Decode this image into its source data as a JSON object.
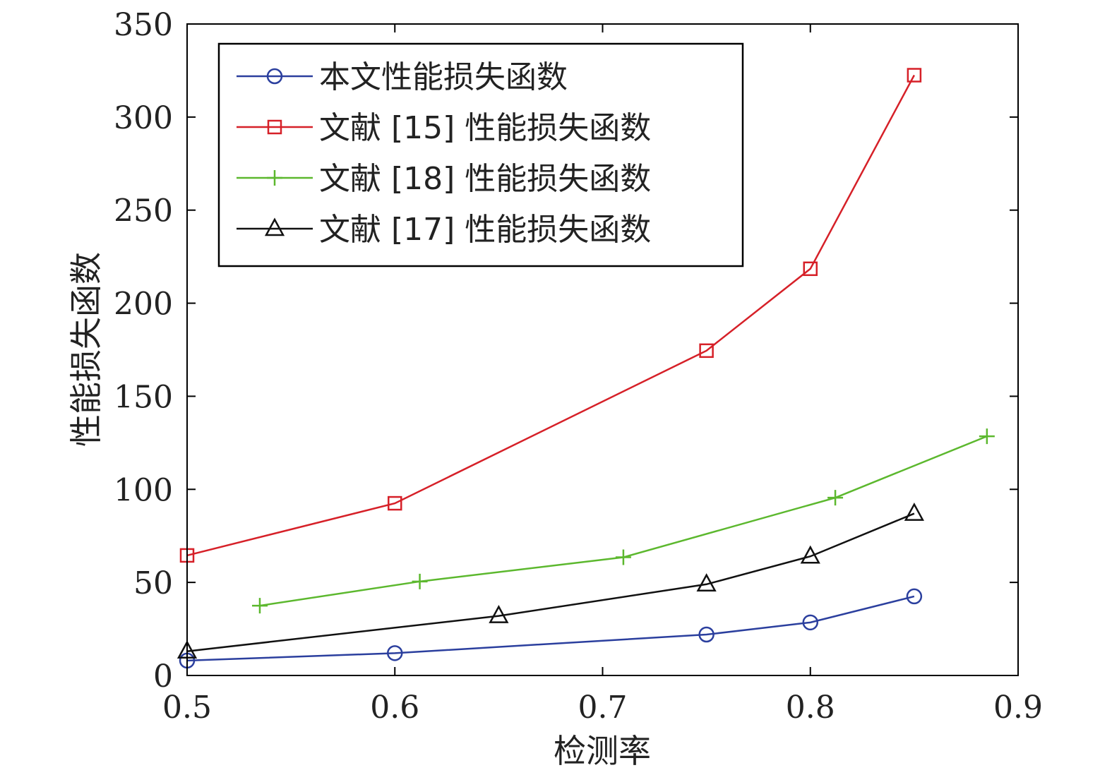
{
  "chart_data": {
    "type": "line",
    "title": "",
    "xlabel": "检测率",
    "ylabel": "性能损失函数",
    "xlim": [
      0.5,
      0.9
    ],
    "ylim": [
      0,
      350
    ],
    "xticks": [
      "0.5",
      "0.6",
      "0.7",
      "0.8",
      "0.9"
    ],
    "yticks": [
      "0",
      "50",
      "100",
      "150",
      "200",
      "250",
      "300",
      "350"
    ],
    "grid": false,
    "legend_position": "top-left",
    "series": [
      {
        "name": "本文性能损失函数",
        "color": "#2b3f9e",
        "marker": "circle",
        "x": [
          0.5,
          0.6,
          0.75,
          0.8,
          0.85
        ],
        "y": [
          8,
          12,
          22,
          28.5,
          42.5
        ]
      },
      {
        "name": "文献 [15] 性能损失函数",
        "color": "#d62028",
        "marker": "square",
        "x": [
          0.5,
          0.6,
          0.75,
          0.8,
          0.85
        ],
        "y": [
          64.5,
          92.5,
          174.5,
          218.5,
          322.5
        ]
      },
      {
        "name": "文献 [18] 性能损失函数",
        "color": "#5cb82e",
        "marker": "plus",
        "x": [
          0.535,
          0.612,
          0.71,
          0.812,
          0.885
        ],
        "y": [
          37.5,
          50.5,
          63.5,
          95.5,
          128.5
        ]
      },
      {
        "name": "文献 [17] 性能损失函数",
        "color": "#111111",
        "marker": "triangle",
        "x": [
          0.5,
          0.65,
          0.75,
          0.8,
          0.85
        ],
        "y": [
          13,
          32,
          49,
          64,
          87
        ]
      }
    ]
  }
}
